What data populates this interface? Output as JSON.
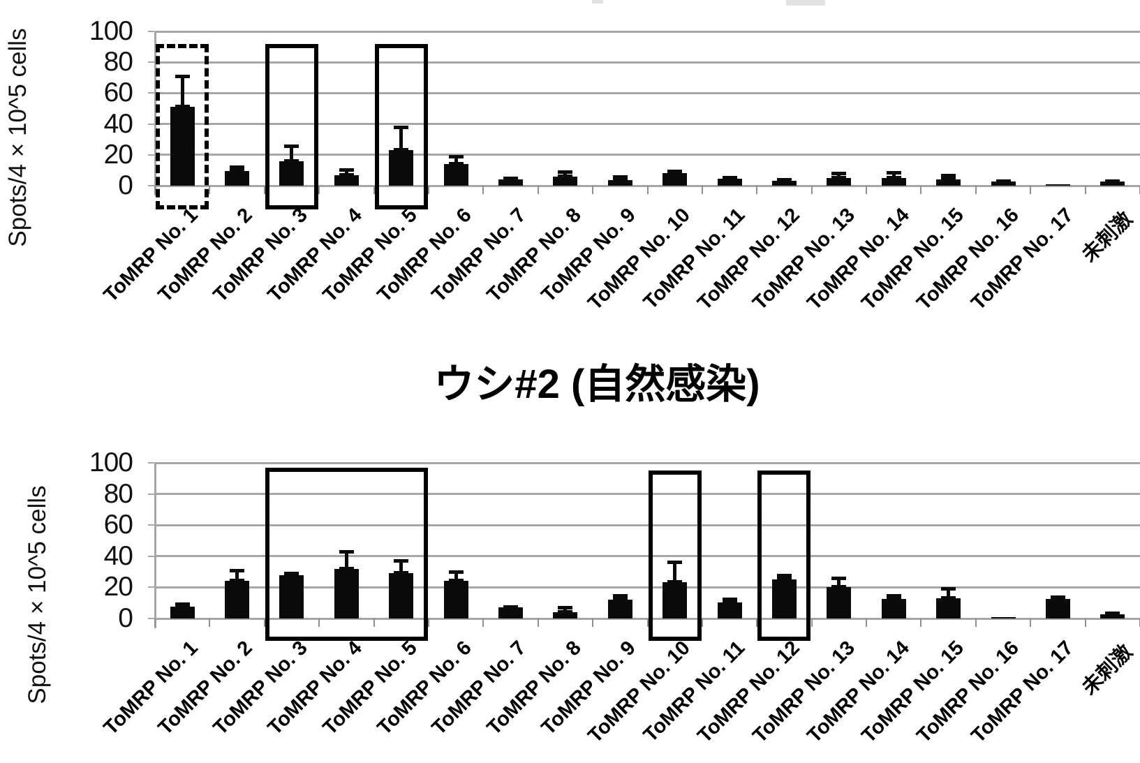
{
  "figure": {
    "background": "#ffffff",
    "bar_color": "#0a0a0a",
    "grid_color": "#a6a6a6",
    "highlight_border_color": "#000000",
    "unstimulated_label": "未刺激"
  },
  "chart_data": [
    {
      "type": "bar",
      "title": "",
      "ylabel": "Spots/4 × 10^5 cells",
      "xlabel": "",
      "ylim": [
        0,
        100
      ],
      "yticks": [
        0,
        20,
        40,
        60,
        80,
        100
      ],
      "grid": true,
      "legend": "none",
      "categories": [
        "ToMRP No. 1",
        "ToMRP No. 2",
        "ToMRP No. 3",
        "ToMRP No. 4",
        "ToMRP No. 5",
        "ToMRP No. 6",
        "ToMRP No. 7",
        "ToMRP No. 8",
        "ToMRP No. 9",
        "ToMRP No. 10",
        "ToMRP No. 11",
        "ToMRP No. 12",
        "ToMRP No. 13",
        "ToMRP No. 14",
        "ToMRP No. 15",
        "ToMRP No. 16",
        "ToMRP No. 17",
        "未刺激"
      ],
      "values": [
        51,
        9.5,
        16,
        7,
        23,
        14,
        4,
        6,
        3.5,
        8,
        4.5,
        3,
        5,
        5,
        4,
        2.5,
        1,
        2.5
      ],
      "errors_upper": [
        20,
        2.5,
        10,
        3.5,
        15,
        5,
        1,
        3,
        2.5,
        1.5,
        1,
        1,
        3,
        3.5,
        3,
        0.5,
        0,
        0.5
      ],
      "highlights": [
        {
          "from_index": 0,
          "to_index": 0,
          "style": "dashed",
          "top_value": 92
        },
        {
          "from_index": 2,
          "to_index": 2,
          "style": "solid",
          "top_value": 92
        },
        {
          "from_index": 4,
          "to_index": 4,
          "style": "solid",
          "top_value": 92
        }
      ]
    },
    {
      "type": "bar",
      "title": "ウシ#2 (自然感染)",
      "ylabel": "Spots/4 × 10^5 cells",
      "xlabel": "",
      "ylim": [
        0,
        100
      ],
      "yticks": [
        0,
        20,
        40,
        60,
        80,
        100
      ],
      "grid": true,
      "legend": "none",
      "categories": [
        "ToMRP No. 1",
        "ToMRP No. 2",
        "ToMRP No. 3",
        "ToMRP No. 4",
        "ToMRP No. 5",
        "ToMRP No. 6",
        "ToMRP No. 7",
        "ToMRP No. 8",
        "ToMRP No. 9",
        "ToMRP No. 10",
        "ToMRP No. 11",
        "ToMRP No. 12",
        "ToMRP No. 13",
        "ToMRP No. 14",
        "ToMRP No. 15",
        "ToMRP No. 16",
        "ToMRP No. 17",
        "未刺激"
      ],
      "values": [
        7.5,
        24,
        28,
        32,
        29,
        24,
        7,
        4,
        12,
        23.5,
        10.5,
        25,
        20,
        12.5,
        13,
        1,
        12.5,
        2.5
      ],
      "errors_upper": [
        2,
        7,
        1,
        11,
        8,
        6,
        0.5,
        3,
        3,
        13,
        2,
        3,
        6,
        2.5,
        6.5,
        0,
        1.5,
        1
      ],
      "highlights": [
        {
          "from_index": 2,
          "to_index": 4,
          "style": "solid",
          "top_value": 97
        },
        {
          "from_index": 9,
          "to_index": 9,
          "style": "solid",
          "top_value": 95
        },
        {
          "from_index": 11,
          "to_index": 11,
          "style": "solid",
          "top_value": 95
        }
      ]
    }
  ]
}
